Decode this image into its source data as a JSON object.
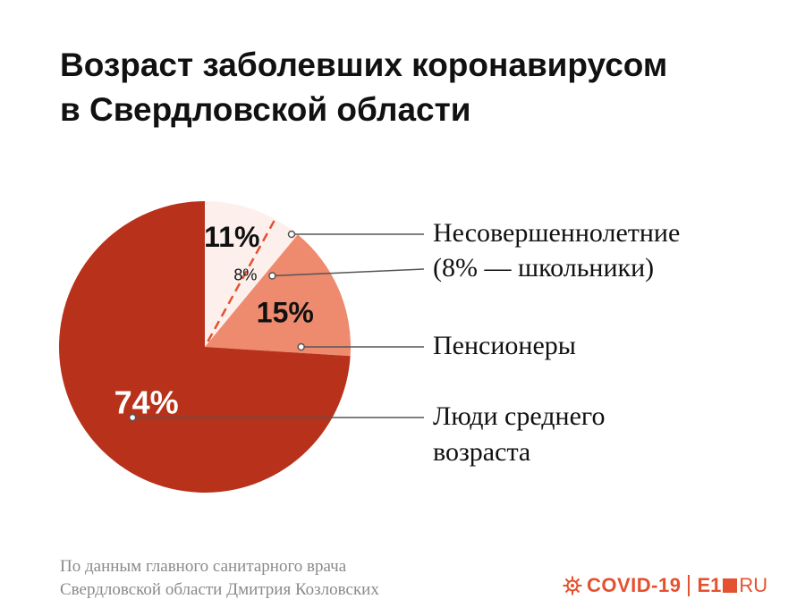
{
  "title": {
    "line1": "Возраст заболевших коронавирусом",
    "line2": "в Свердловской области"
  },
  "chart_data": {
    "type": "pie",
    "title": "Возраст заболевших коронавирусом в Свердловской области",
    "slices": [
      {
        "label_lines": [
          "Несовершеннолетние",
          "(8% — школьники)"
        ],
        "value": 11,
        "value_label": "11%",
        "color": "#fdf0ec"
      },
      {
        "label_lines": [
          "Пенсионеры"
        ],
        "value": 15,
        "value_label": "15%",
        "color": "#ee8a6e"
      },
      {
        "label_lines": [
          "Люди среднего",
          "возраста"
        ],
        "value": 74,
        "value_label": "74%",
        "color": "#b8311a"
      }
    ],
    "sub_annotation": {
      "value": 8,
      "value_label": "8%",
      "parent": "Несовершеннолетние",
      "line_color": "#e4512f"
    }
  },
  "source": {
    "line1": "По данным главного санитарного врача",
    "line2": "Свердловской области Дмитрия Козловских"
  },
  "brand": {
    "covid": "COVID-19",
    "e1": "E1",
    "ru": "RU",
    "accent": "#e4512f"
  }
}
